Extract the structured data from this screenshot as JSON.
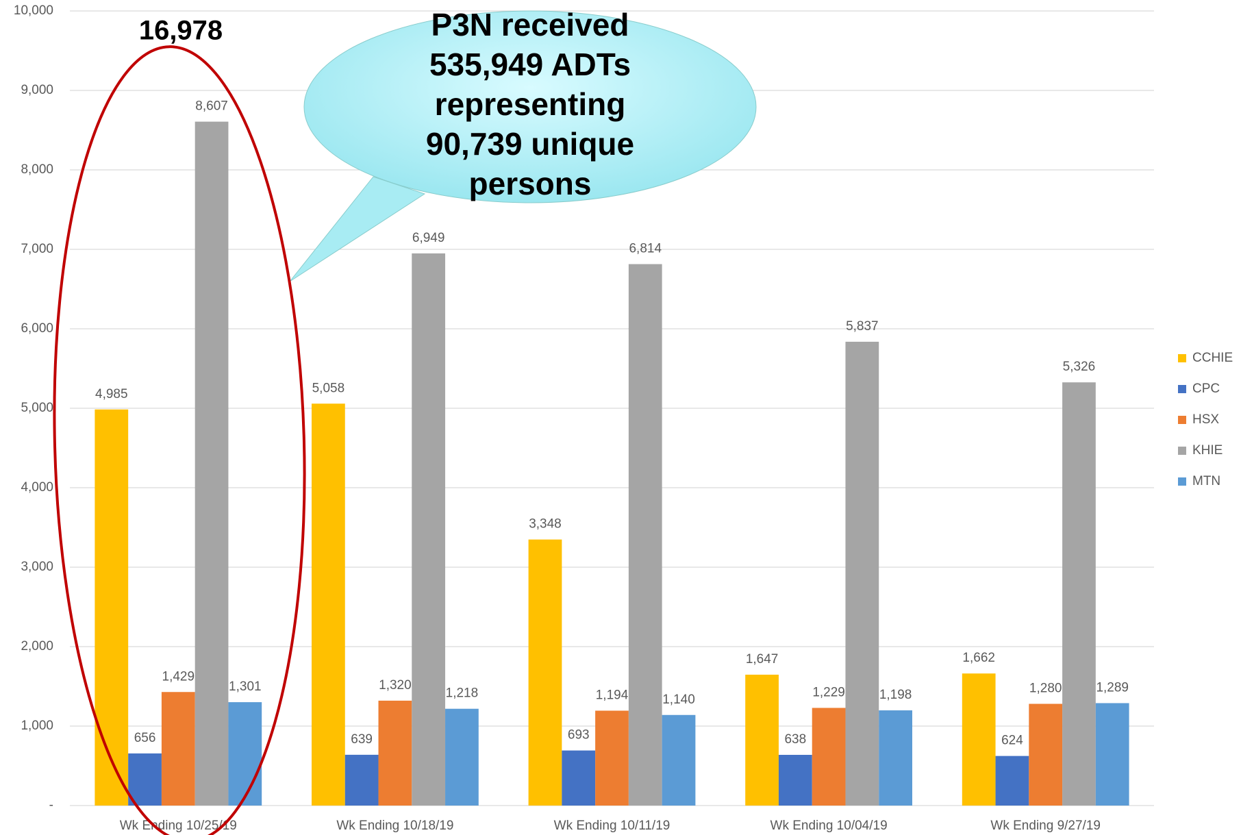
{
  "chart_data": {
    "type": "bar",
    "categories": [
      "Wk Ending 10/25/19",
      "Wk Ending 10/18/19",
      "Wk Ending 10/11/19",
      "Wk Ending 10/04/19",
      "Wk Ending 9/27/19"
    ],
    "series": [
      {
        "name": "CCHIE",
        "color": "#FFC000",
        "values": [
          4985,
          5058,
          3348,
          1647,
          1662
        ],
        "value_labels": [
          "4,985",
          "5,058",
          "3,348",
          "1,647",
          "1,662"
        ]
      },
      {
        "name": "CPC",
        "color": "#4472C4",
        "values": [
          656,
          639,
          693,
          638,
          624
        ]
      },
      {
        "name": "HSX",
        "color": "#ED7D31",
        "values": [
          1429,
          1320,
          1194,
          1229,
          1280
        ],
        "value_labels": [
          "1,429",
          "1,320",
          "1,194",
          "1,229",
          "1,280"
        ]
      },
      {
        "name": "KHIE",
        "color": "#A5A5A5",
        "values": [
          8607,
          6949,
          6814,
          5837,
          5326
        ],
        "value_labels": [
          "8,607",
          "6,949",
          "6,814",
          "5,837",
          "5,326"
        ]
      },
      {
        "name": "MTN",
        "color": "#5B9BD5",
        "values": [
          1301,
          1218,
          1140,
          1198,
          1289
        ],
        "value_labels": [
          "1,301",
          "1,218",
          "1,140",
          "1,198",
          "1,289"
        ]
      }
    ],
    "ylim": [
      0,
      10000
    ],
    "yticks": [
      {
        "value": 0,
        "label": "-"
      },
      {
        "value": 1000,
        "label": "1,000"
      },
      {
        "value": 2000,
        "label": "2,000"
      },
      {
        "value": 3000,
        "label": "3,000"
      },
      {
        "value": 4000,
        "label": "4,000"
      },
      {
        "value": 5000,
        "label": "5,000"
      },
      {
        "value": 6000,
        "label": "6,000"
      },
      {
        "value": 7000,
        "label": "7,000"
      },
      {
        "value": 8000,
        "label": "8,000"
      },
      {
        "value": 9000,
        "label": "9,000"
      },
      {
        "value": 10000,
        "label": "10,000"
      }
    ],
    "grid": true,
    "legend": "right",
    "highlight_label": "16,978",
    "callout": [
      "P3N received",
      "535,949 ADTs",
      "representing",
      "90,739 unique",
      "persons"
    ]
  }
}
